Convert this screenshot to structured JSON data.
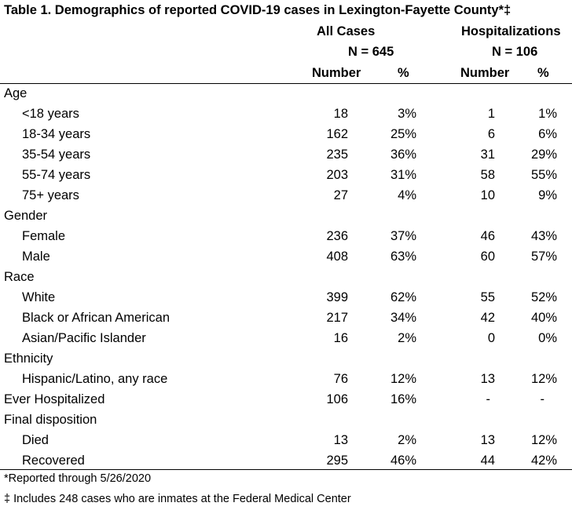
{
  "title": "Table 1. Demographics of reported COVID-19 cases in Lexington-Fayette County*‡",
  "groups": [
    {
      "label": "All Cases",
      "n_label": "N = 645"
    },
    {
      "label": "Hospitalizations",
      "n_label": "N = 106"
    }
  ],
  "col_headers": [
    "Number",
    "%",
    "Number",
    "%"
  ],
  "rows": [
    {
      "label": "Age",
      "section": true
    },
    {
      "label": "<18 years",
      "values": [
        "18",
        "3%",
        "1",
        "1%"
      ]
    },
    {
      "label": "18-34 years",
      "values": [
        "162",
        "25%",
        "6",
        "6%"
      ]
    },
    {
      "label": "35-54 years",
      "values": [
        "235",
        "36%",
        "31",
        "29%"
      ]
    },
    {
      "label": "55-74 years",
      "values": [
        "203",
        "31%",
        "58",
        "55%"
      ]
    },
    {
      "label": "75+ years",
      "values": [
        "27",
        "4%",
        "10",
        "9%"
      ]
    },
    {
      "label": "Gender",
      "section": true
    },
    {
      "label": "Female",
      "values": [
        "236",
        "37%",
        "46",
        "43%"
      ]
    },
    {
      "label": "Male",
      "values": [
        "408",
        "63%",
        "60",
        "57%"
      ]
    },
    {
      "label": "Race",
      "section": true
    },
    {
      "label": "White",
      "values": [
        "399",
        "62%",
        "55",
        "52%"
      ]
    },
    {
      "label": "Black or African American",
      "values": [
        "217",
        "34%",
        "42",
        "40%"
      ]
    },
    {
      "label": "Asian/Pacific Islander",
      "values": [
        "16",
        "2%",
        "0",
        "0%"
      ]
    },
    {
      "label": "Ethnicity",
      "section": true
    },
    {
      "label": "Hispanic/Latino, any race",
      "values": [
        "76",
        "12%",
        "13",
        "12%"
      ]
    },
    {
      "label": "Ever Hospitalized",
      "section": true,
      "values": [
        "106",
        "16%",
        "-",
        "-"
      ]
    },
    {
      "label": "Final disposition",
      "section": true
    },
    {
      "label": "Died",
      "values": [
        "13",
        "2%",
        "13",
        "12%"
      ]
    },
    {
      "label": "Recovered",
      "values": [
        "295",
        "46%",
        "44",
        "42%"
      ]
    }
  ],
  "footnotes": [
    "*Reported through 5/26/2020",
    "‡ Includes 248 cases who are inmates at the Federal Medical Center"
  ]
}
